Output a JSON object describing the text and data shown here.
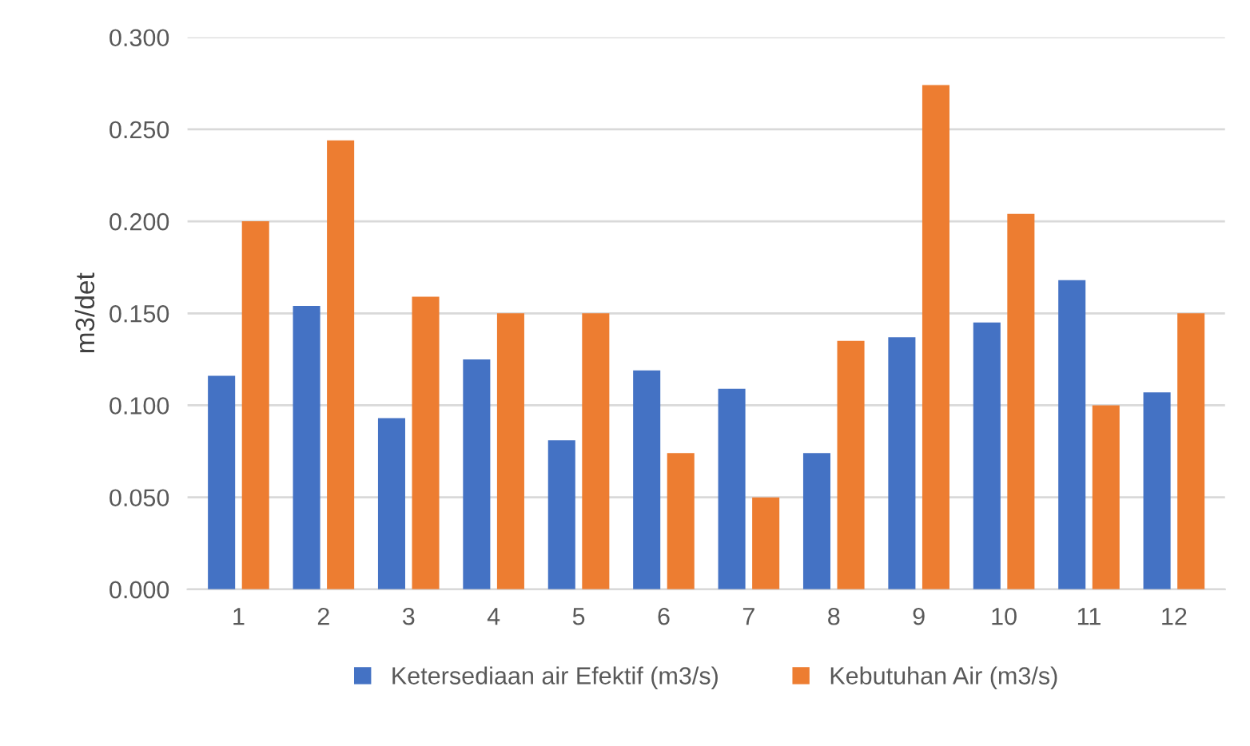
{
  "chart_data": {
    "type": "bar",
    "ylabel": "m3/det",
    "categories": [
      "1",
      "2",
      "3",
      "4",
      "5",
      "6",
      "7",
      "8",
      "9",
      "10",
      "11",
      "12"
    ],
    "series": [
      {
        "name": "Ketersediaan air Efektif (m3/s)",
        "color": "#4472c4",
        "values": [
          0.116,
          0.154,
          0.093,
          0.125,
          0.081,
          0.119,
          0.109,
          0.074,
          0.137,
          0.145,
          0.168,
          0.107
        ]
      },
      {
        "name": "Kebutuhan Air (m3/s)",
        "color": "#ed7d31",
        "values": [
          0.2,
          0.244,
          0.159,
          0.15,
          0.15,
          0.074,
          0.05,
          0.135,
          0.274,
          0.204,
          0.1,
          0.15
        ]
      }
    ],
    "ylim": [
      0,
      0.3
    ],
    "yticks": [
      {
        "value": 0,
        "label": "0.000"
      },
      {
        "value": 0.05,
        "label": "0.050"
      },
      {
        "value": 0.1,
        "label": "0.100"
      },
      {
        "value": 0.15,
        "label": "0.150"
      },
      {
        "value": 0.2,
        "label": "0.200"
      },
      {
        "value": 0.25,
        "label": "0.250"
      },
      {
        "value": 0.3,
        "label": "0.300"
      }
    ],
    "grid": "y",
    "legend": "bottom"
  }
}
